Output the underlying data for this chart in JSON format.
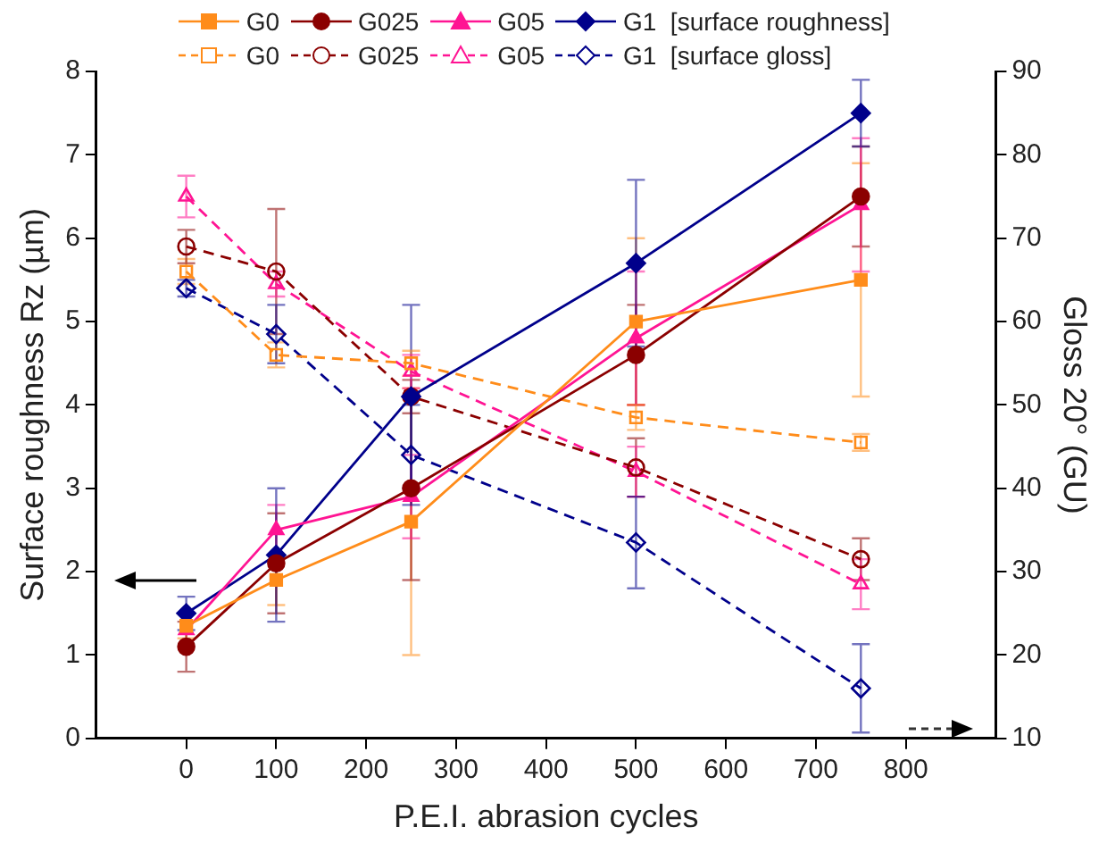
{
  "chart_data": {
    "type": "line",
    "xlabel": "P.E.I. abrasion cycles",
    "ylabel": "Surface roughness Rz (µm)",
    "y2label": "Gloss 20° (GU)",
    "x": [
      0,
      100,
      250,
      500,
      750
    ],
    "xlim": [
      -100,
      900
    ],
    "xticks": [
      0,
      100,
      200,
      300,
      400,
      500,
      600,
      700,
      800
    ],
    "ylim": [
      0,
      8
    ],
    "yticks": [
      0,
      1,
      2,
      3,
      4,
      5,
      6,
      7,
      8
    ],
    "y2lim": [
      10,
      90
    ],
    "y2ticks": [
      10,
      20,
      30,
      40,
      50,
      60,
      70,
      80,
      90
    ],
    "grid": false,
    "legend": "top",
    "series": [
      {
        "name": "G0",
        "color": "#ff8c1a",
        "marker": "square",
        "line_style": "solid",
        "values": [
          1.35,
          1.9,
          2.6,
          5.0,
          5.5
        ],
        "errors": [
          0.15,
          0.3,
          1.6,
          1.0,
          1.4
        ]
      },
      {
        "name": "G025",
        "color": "#8b0000",
        "marker": "circle",
        "line_style": "solid",
        "values": [
          1.1,
          2.1,
          3.0,
          4.6,
          6.5
        ],
        "errors": [
          0.3,
          0.6,
          1.1,
          0.6,
          0.6
        ]
      },
      {
        "name": "G05",
        "color": "#ff1493",
        "marker": "triangle",
        "line_style": "solid",
        "values": [
          1.3,
          2.5,
          2.9,
          4.8,
          6.4
        ],
        "errors": [
          null,
          0.3,
          0.5,
          0.8,
          0.8
        ]
      },
      {
        "name": "G1  [surface roughness]",
        "color": "#00008b",
        "marker": "diamond",
        "line_style": "solid",
        "values": [
          1.5,
          2.2,
          4.1,
          5.7,
          7.5
        ],
        "errors": [
          0.2,
          0.8,
          1.1,
          1.0,
          0.4
        ]
      },
      {
        "name": "G0",
        "color": "#ff8c1a",
        "marker": "square",
        "line_style": "dashed",
        "axis": "y2",
        "values": [
          66,
          56,
          55,
          48.5,
          45.5
        ],
        "errors": [
          1.5,
          1.5,
          1.5,
          1.5,
          1
        ]
      },
      {
        "name": "G025",
        "color": "#8b0000",
        "marker": "circle",
        "line_style": "dashed",
        "axis": "y2",
        "values": [
          69,
          66,
          51,
          42.5,
          31.5
        ],
        "errors": [
          2,
          7.5,
          2,
          3.5,
          2.5
        ]
      },
      {
        "name": "G05",
        "color": "#ff1493",
        "marker": "triangle",
        "line_style": "dashed",
        "axis": "y2",
        "values": [
          75,
          64.5,
          54,
          42,
          28.5
        ],
        "errors": [
          2.5,
          1.5,
          2,
          3,
          3
        ]
      },
      {
        "name": "G1  [surface gloss]",
        "color": "#00008b",
        "marker": "diamond",
        "line_style": "dashed",
        "axis": "y2",
        "values": [
          64,
          58.5,
          44,
          33.5,
          16
        ],
        "errors": [
          1,
          3.5,
          6,
          5.5,
          5.3
        ]
      }
    ]
  }
}
